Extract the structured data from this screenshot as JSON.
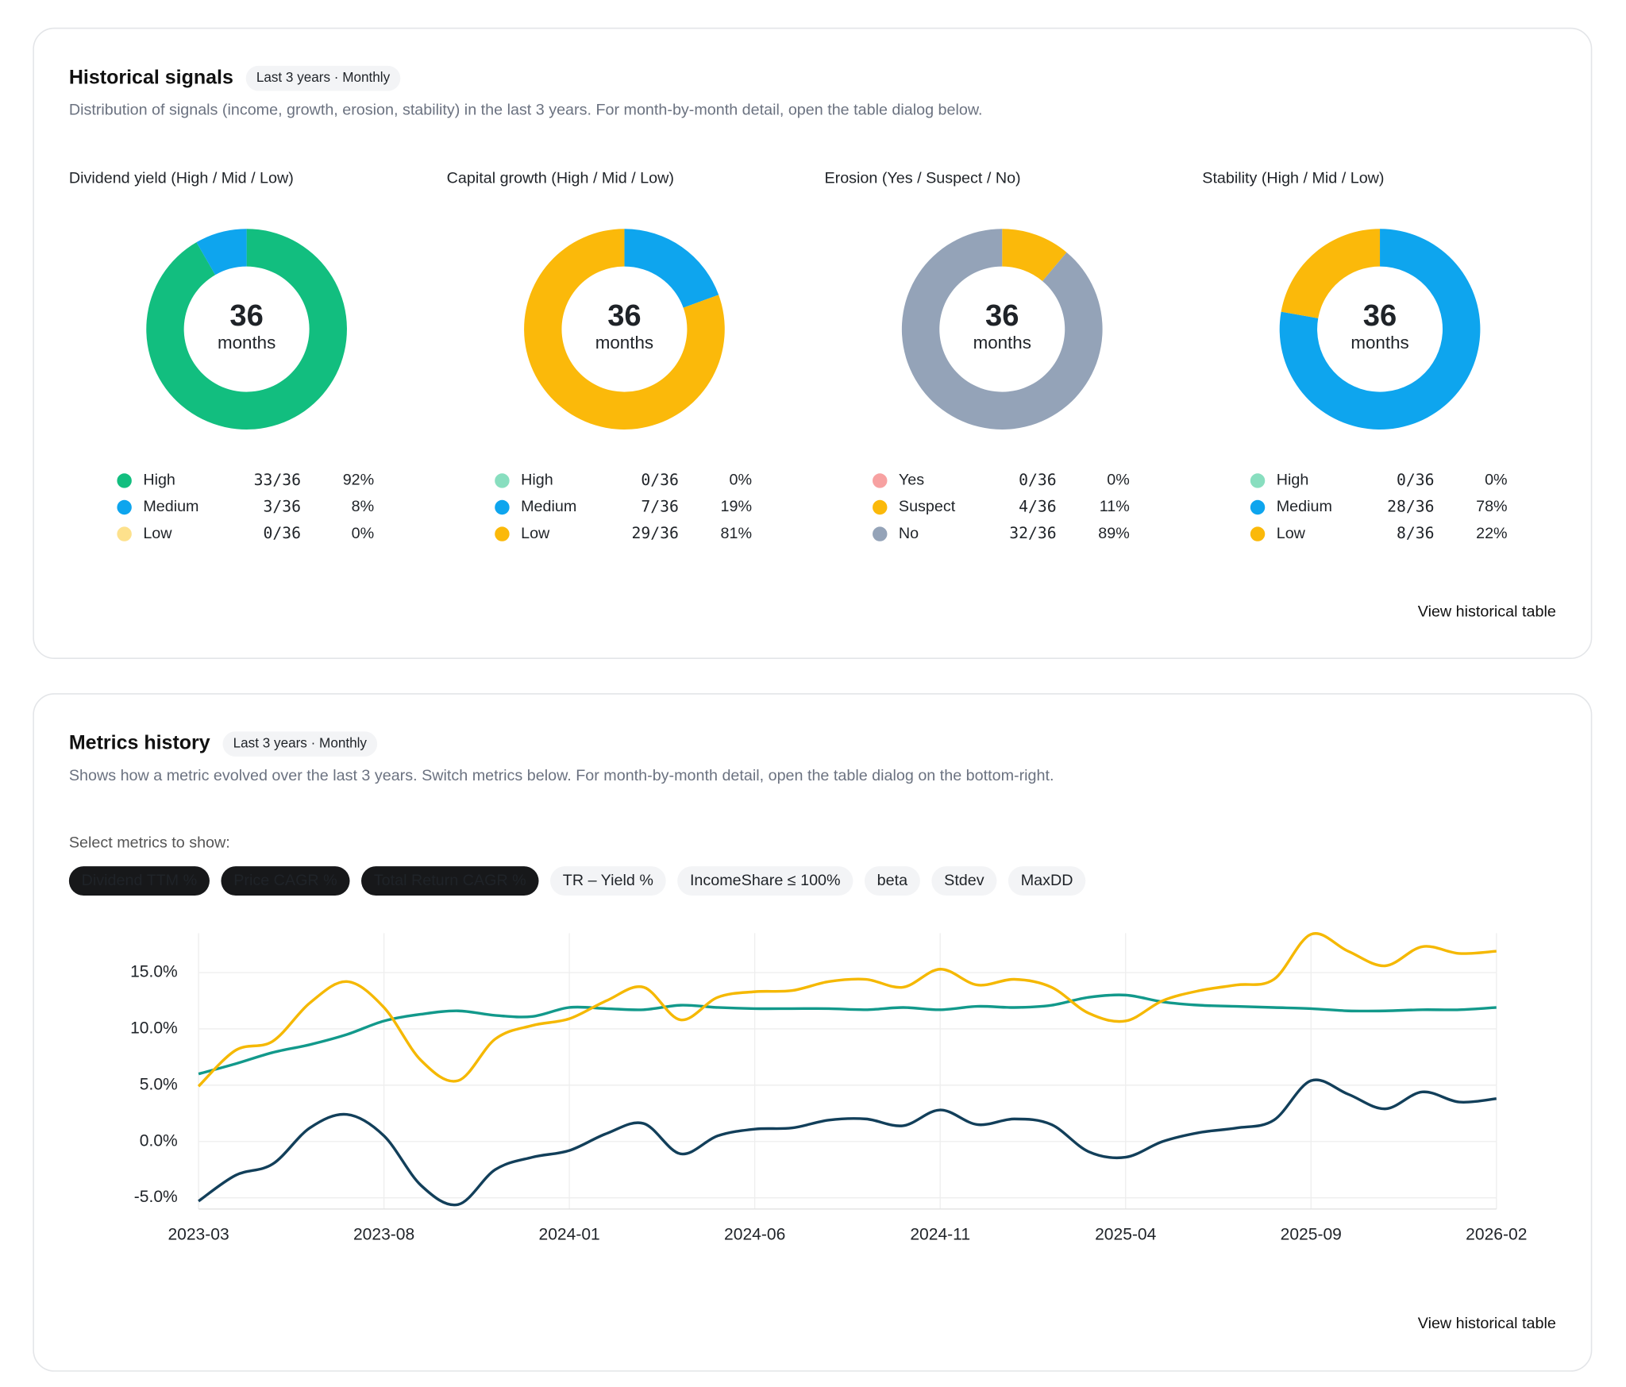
{
  "cards": [
    {
      "title": "Historical signals",
      "badge": "Last 3 years · Monthly",
      "description": "Distribution of signals (income, growth, erosion, stability) in the last 3 years. For month-by-month detail, open the table dialog below.",
      "link": "View historical table"
    },
    {
      "title": "Metrics history",
      "badge": "Last 3 years · Monthly",
      "description": "Shows how a metric evolved over the last 3 years. Switch metrics below. For month-by-month detail, open the table dialog on the bottom-right.",
      "selector_label": "Select metrics to show:",
      "chips": [
        {
          "label": "Dividend TTM %",
          "selected": true
        },
        {
          "label": "Price CAGR %",
          "selected": true
        },
        {
          "label": "Total Return CAGR %",
          "selected": true
        },
        {
          "label": "TR – Yield %",
          "selected": false
        },
        {
          "label": "IncomeShare ≤ 100%",
          "selected": false
        },
        {
          "label": "beta",
          "selected": false
        },
        {
          "label": "Stdev",
          "selected": false
        },
        {
          "label": "MaxDD",
          "selected": false
        }
      ],
      "link": "View historical table"
    }
  ],
  "chart_data": [
    {
      "type": "pie",
      "title": "Dividend yield (High / Mid / Low)",
      "center_value": 36,
      "center_label": "months",
      "categories": [
        "High",
        "Medium",
        "Low"
      ],
      "values": [
        33,
        3,
        0
      ],
      "value_labels": [
        "33/36",
        "3/36",
        "0/36"
      ],
      "share_labels": [
        "92%",
        "8%",
        "0%"
      ],
      "colors": [
        "#12be7f",
        "#0ea5ee",
        "#fcc419"
      ]
    },
    {
      "type": "pie",
      "title": "Capital growth (High / Mid / Low)",
      "center_value": 36,
      "center_label": "months",
      "categories": [
        "High",
        "Medium",
        "Low"
      ],
      "values": [
        0,
        7,
        29
      ],
      "value_labels": [
        "0/36",
        "7/36",
        "29/36"
      ],
      "share_labels": [
        "0%",
        "19%",
        "81%"
      ],
      "colors": [
        "#12be7f",
        "#0ea5ee",
        "#fbb90a"
      ]
    },
    {
      "type": "pie",
      "title": "Erosion (Yes / Suspect / No)",
      "center_value": 36,
      "center_label": "months",
      "categories": [
        "Yes",
        "Suspect",
        "No"
      ],
      "values": [
        0,
        4,
        32
      ],
      "value_labels": [
        "0/36",
        "4/36",
        "32/36"
      ],
      "share_labels": [
        "0%",
        "11%",
        "89%"
      ],
      "colors": [
        "#ef4444",
        "#fbb90a",
        "#94a3b8"
      ]
    },
    {
      "type": "pie",
      "title": "Stability (High / Mid / Low)",
      "center_value": 36,
      "center_label": "months",
      "categories": [
        "High",
        "Medium",
        "Low"
      ],
      "values": [
        0,
        28,
        8
      ],
      "value_labels": [
        "0/36",
        "28/36",
        "8/36"
      ],
      "share_labels": [
        "0%",
        "78%",
        "22%"
      ],
      "colors": [
        "#12be7f",
        "#0ea5ee",
        "#fbb90a"
      ]
    },
    {
      "type": "line",
      "categories": [
        "2023-03",
        null,
        null,
        null,
        null,
        "2023-08",
        null,
        null,
        null,
        null,
        "2024-01",
        null,
        null,
        null,
        null,
        "2024-06",
        null,
        null,
        null,
        null,
        "2024-11",
        null,
        null,
        null,
        null,
        "2025-04",
        null,
        null,
        null,
        null,
        "2025-09",
        null,
        null,
        null,
        null,
        "2026-02"
      ],
      "ylim": [
        -6,
        18.5
      ],
      "yticks": [
        {
          "value": -5,
          "label": "-5.0%"
        },
        {
          "value": 0,
          "label": "0.0%"
        },
        {
          "value": 5,
          "label": "5.0%"
        },
        {
          "value": 10,
          "label": "10.0%"
        },
        {
          "value": 15,
          "label": "15.0%"
        }
      ],
      "grid": true,
      "series": [
        {
          "name": "Dividend TTM %",
          "color": "#12998b",
          "values": [
            6.0,
            6.9,
            7.9,
            8.6,
            9.5,
            10.7,
            11.3,
            11.6,
            11.2,
            11.1,
            11.9,
            11.8,
            11.7,
            12.1,
            11.9,
            11.8,
            11.8,
            11.8,
            11.7,
            11.9,
            11.7,
            12.0,
            11.9,
            12.1,
            12.8,
            13.0,
            12.4,
            12.1,
            12.0,
            11.9,
            11.8,
            11.6,
            11.6,
            11.7,
            11.7,
            11.9
          ]
        },
        {
          "name": "Price CAGR %",
          "color": "#123f5a",
          "values": [
            -5.3,
            -3.0,
            -2.0,
            1.2,
            2.4,
            0.5,
            -3.9,
            -5.6,
            -2.5,
            -1.4,
            -0.8,
            0.7,
            1.6,
            -1.1,
            0.5,
            1.1,
            1.2,
            1.9,
            2.0,
            1.4,
            2.8,
            1.5,
            2.0,
            1.5,
            -0.9,
            -1.4,
            0.0,
            0.8,
            1.2,
            1.9,
            5.4,
            4.2,
            2.9,
            4.4,
            3.5,
            3.8
          ]
        },
        {
          "name": "Total Return CAGR %",
          "color": "#f5b800",
          "values": [
            4.9,
            8.1,
            8.9,
            12.3,
            14.2,
            11.9,
            7.2,
            5.4,
            9.1,
            10.3,
            10.9,
            12.5,
            13.7,
            10.8,
            12.8,
            13.3,
            13.4,
            14.2,
            14.4,
            13.7,
            15.3,
            13.9,
            14.4,
            13.7,
            11.4,
            10.7,
            12.5,
            13.4,
            13.9,
            14.4,
            18.4,
            16.9,
            15.6,
            17.3,
            16.7,
            16.9
          ]
        }
      ]
    }
  ]
}
